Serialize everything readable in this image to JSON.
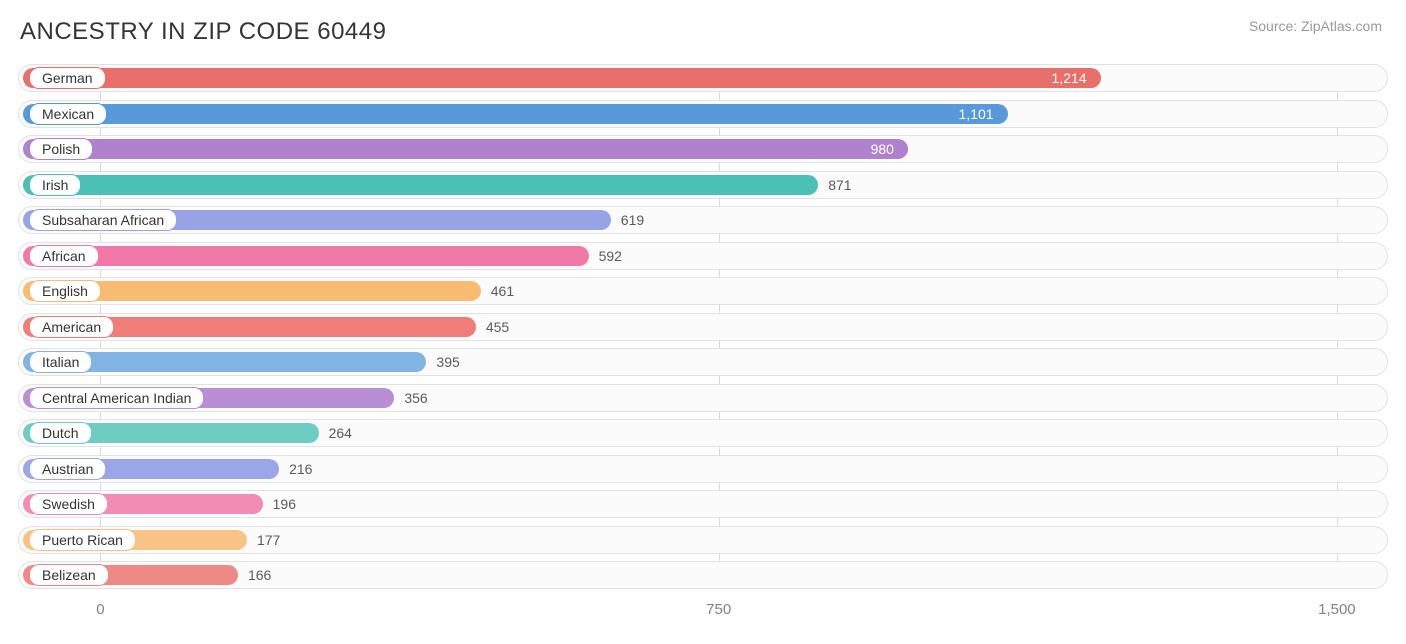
{
  "title": "ANCESTRY IN ZIP CODE 60449",
  "source": "Source: ZipAtlas.com",
  "chart": {
    "type": "bar",
    "xmin": -100,
    "xmax": 1562,
    "background_color": "#fbfbfb",
    "track_border_color": "#e2e2e2",
    "grid_color": "#d9d9d9",
    "label_text_color": "#333333",
    "axis_text_color": "#818181",
    "bar_track_height": 28,
    "bar_gap": 7.5,
    "label_fontsize": 14,
    "value_fontsize": 14,
    "axis_fontsize": 15,
    "ticks": [
      {
        "value": 0,
        "label": "0"
      },
      {
        "value": 750,
        "label": "750"
      },
      {
        "value": 1500,
        "label": "1,500"
      }
    ],
    "bars": [
      {
        "label": "German",
        "value": 1214,
        "display": "1,214",
        "color": "#e9706a",
        "value_inside": true
      },
      {
        "label": "Mexican",
        "value": 1101,
        "display": "1,101",
        "color": "#5899da",
        "value_inside": true
      },
      {
        "label": "Polish",
        "value": 980,
        "display": "980",
        "color": "#b082ce",
        "value_inside": true
      },
      {
        "label": "Irish",
        "value": 871,
        "display": "871",
        "color": "#4bc1b5",
        "value_inside": false
      },
      {
        "label": "Subsaharan African",
        "value": 619,
        "display": "619",
        "color": "#98a3e6",
        "value_inside": false
      },
      {
        "label": "African",
        "value": 592,
        "display": "592",
        "color": "#f179a8",
        "value_inside": false
      },
      {
        "label": "English",
        "value": 461,
        "display": "461",
        "color": "#f8bb72",
        "value_inside": false
      },
      {
        "label": "American",
        "value": 455,
        "display": "455",
        "color": "#ee7e77",
        "value_inside": false
      },
      {
        "label": "Italian",
        "value": 395,
        "display": "395",
        "color": "#81b4e3",
        "value_inside": false
      },
      {
        "label": "Central American Indian",
        "value": 356,
        "display": "356",
        "color": "#b88fd4",
        "value_inside": false
      },
      {
        "label": "Dutch",
        "value": 264,
        "display": "264",
        "color": "#6ecdc2",
        "value_inside": false
      },
      {
        "label": "Austrian",
        "value": 216,
        "display": "216",
        "color": "#9aa6e8",
        "value_inside": false
      },
      {
        "label": "Swedish",
        "value": 196,
        "display": "196",
        "color": "#f28cb4",
        "value_inside": false
      },
      {
        "label": "Puerto Rican",
        "value": 177,
        "display": "177",
        "color": "#f9c386",
        "value_inside": false
      },
      {
        "label": "Belizean",
        "value": 166,
        "display": "166",
        "color": "#ef8985",
        "value_inside": false
      }
    ]
  }
}
